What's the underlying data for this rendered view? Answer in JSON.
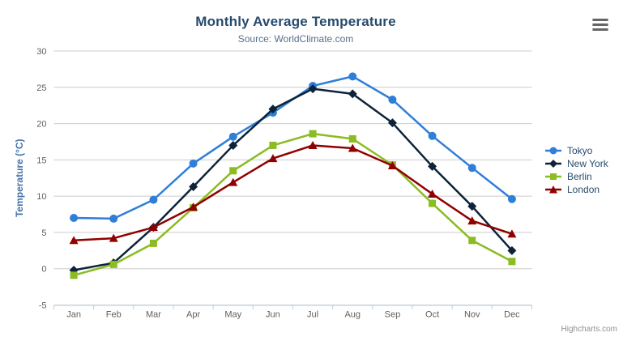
{
  "chart_data": {
    "type": "line",
    "title": "Monthly Average Temperature",
    "subtitle": "Source: WorldClimate.com",
    "categories": [
      "Jan",
      "Feb",
      "Mar",
      "Apr",
      "May",
      "Jun",
      "Jul",
      "Aug",
      "Sep",
      "Oct",
      "Nov",
      "Dec"
    ],
    "xlabel": "",
    "ylabel": "Temperature (°C)",
    "ylim": [
      -5,
      30
    ],
    "ytick_interval": 5,
    "grid": "horizontal-only",
    "legend_position": "right",
    "series": [
      {
        "name": "Tokyo",
        "marker": "circle",
        "color": "#2f7ed8",
        "values": [
          7.0,
          6.9,
          9.5,
          14.5,
          18.2,
          21.5,
          25.2,
          26.5,
          23.3,
          18.3,
          13.9,
          9.6
        ]
      },
      {
        "name": "New York",
        "marker": "diamond",
        "color": "#0d233a",
        "values": [
          -0.2,
          0.8,
          5.7,
          11.3,
          17.0,
          22.0,
          24.8,
          24.1,
          20.1,
          14.1,
          8.6,
          2.5
        ]
      },
      {
        "name": "Berlin",
        "marker": "square",
        "color": "#8bbc21",
        "values": [
          -0.9,
          0.6,
          3.5,
          8.4,
          13.5,
          17.0,
          18.6,
          17.9,
          14.3,
          9.0,
          3.9,
          1.0
        ]
      },
      {
        "name": "London",
        "marker": "triangle",
        "color": "#910000",
        "values": [
          3.9,
          4.2,
          5.7,
          8.5,
          11.9,
          15.2,
          17.0,
          16.6,
          14.2,
          10.3,
          6.6,
          4.8
        ]
      }
    ]
  },
  "credits": {
    "label": "Highcharts.com"
  },
  "ui_colors": {
    "title": "#274b6d",
    "subtitle": "#55708d",
    "axis_title": "#4572a7",
    "tick_label": "#606060",
    "grid_line": "#cccccc",
    "axis_line": "#c0d0e0",
    "credits": "#909090",
    "menu_icon": "#666666"
  }
}
